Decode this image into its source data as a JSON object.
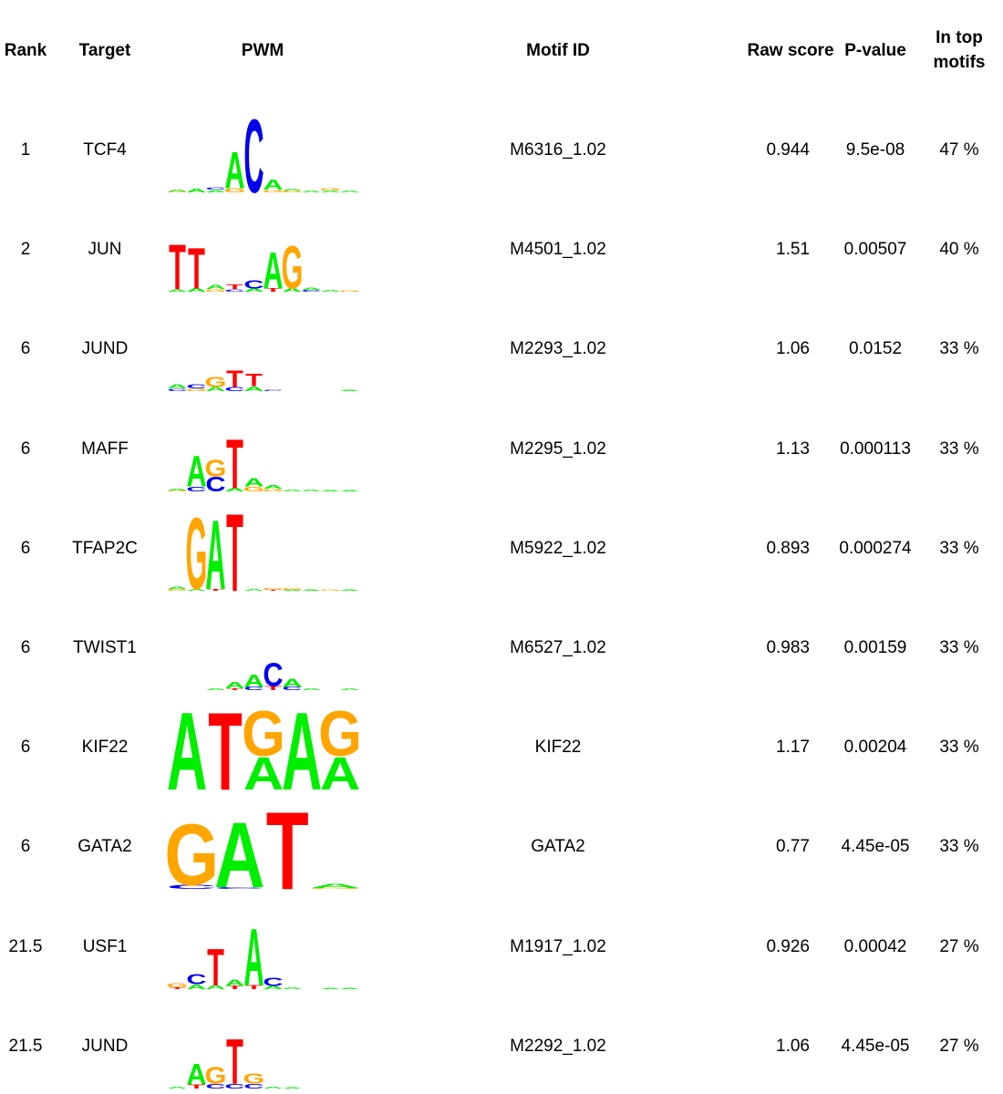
{
  "headers": {
    "rank": "Rank",
    "target": "Target",
    "pwm": "PWM",
    "motif_id": "Motif ID",
    "raw_score": "Raw score",
    "p_value": "P-value",
    "in_top_line1": "In top",
    "in_top_line2": "motifs"
  },
  "colors": {
    "A": "#00EE00",
    "C": "#0000EE",
    "G": "#FFA500",
    "T": "#FF0000"
  },
  "chart_data": {
    "type": "table",
    "rows": [
      {
        "rank": "1",
        "target": "TCF4",
        "motif_id": "M6316_1.02",
        "raw_score": "0.944",
        "p_value": "9.5e-08",
        "in_top": "47 %",
        "logo": [
          [
            "A",
            0.02,
            "G",
            0.01
          ],
          [
            "A",
            0.04
          ],
          [
            "C",
            0.03,
            "A",
            0.03
          ],
          [
            "A",
            0.45,
            "G",
            0.05
          ],
          [
            "C",
            0.9
          ],
          [
            "A",
            0.12,
            "G",
            0.03
          ],
          [
            "A",
            0.02,
            "G",
            0.02
          ],
          [
            "A",
            0.02
          ],
          [
            "G",
            0.03,
            "A",
            0.02
          ],
          [
            "A",
            0.02
          ]
        ]
      },
      {
        "rank": "2",
        "target": "JUN",
        "motif_id": "M4501_1.02",
        "raw_score": "1.51",
        "p_value": "0.00507",
        "in_top": "40 %",
        "logo": [
          [
            "T",
            0.55,
            "A",
            0.03
          ],
          [
            "T",
            0.5,
            "A",
            0.04
          ],
          [
            "A",
            0.05,
            "G",
            0.03
          ],
          [
            "T",
            0.06,
            "C",
            0.03
          ],
          [
            "C",
            0.1,
            "A",
            0.04
          ],
          [
            "A",
            0.45,
            "T",
            0.04
          ],
          [
            "G",
            0.52,
            "A",
            0.04
          ],
          [
            "A",
            0.03,
            "C",
            0.02
          ],
          [
            "A",
            0.02
          ],
          [
            "G",
            0.01
          ]
        ]
      },
      {
        "rank": "6",
        "target": "JUND",
        "motif_id": "M2293_1.02",
        "raw_score": "1.06",
        "p_value": "0.0152",
        "in_top": "33 %",
        "logo": [
          [
            "A",
            0.05,
            "C",
            0.03
          ],
          [
            "C",
            0.05,
            "G",
            0.03
          ],
          [
            "G",
            0.12,
            "A",
            0.05
          ],
          [
            "T",
            0.2,
            "C",
            0.05
          ],
          [
            "T",
            0.15,
            "A",
            0.06
          ],
          [
            "C",
            0.01
          ],
          [],
          [],
          [],
          [
            "A",
            0.01
          ]
        ]
      },
      {
        "rank": "6",
        "target": "MAFF",
        "motif_id": "M2295_1.02",
        "raw_score": "1.13",
        "p_value": "0.000113",
        "in_top": "33 %",
        "logo": [
          [
            "A",
            0.02,
            "G",
            0.01
          ],
          [
            "A",
            0.38,
            "C",
            0.06
          ],
          [
            "G",
            0.2,
            "C",
            0.18
          ],
          [
            "T",
            0.6,
            "A",
            0.04
          ],
          [
            "A",
            0.1,
            "G",
            0.06
          ],
          [
            "A",
            0.04,
            "G",
            0.03
          ],
          [
            "A",
            0.02
          ],
          [
            "A",
            0.02
          ],
          [
            "A",
            0.01
          ],
          [
            "A",
            0.01
          ]
        ]
      },
      {
        "rank": "6",
        "target": "TFAP2C",
        "motif_id": "M5922_1.02",
        "raw_score": "0.893",
        "p_value": "0.000274",
        "in_top": "33 %",
        "logo": [
          [
            "A",
            0.03,
            "G",
            0.02
          ],
          [
            "G",
            0.88,
            "A",
            0.02
          ],
          [
            "A",
            0.85,
            "T",
            0.02
          ],
          [
            "T",
            0.95
          ],
          [
            "A",
            0.02
          ],
          [
            "G",
            0.02,
            "T",
            0.01
          ],
          [
            "G",
            0.02,
            "A",
            0.01
          ],
          [
            "A",
            0.01
          ],
          [
            "G",
            0.01
          ],
          [
            "A",
            0.01
          ]
        ]
      },
      {
        "rank": "6",
        "target": "TWIST1",
        "motif_id": "M6527_1.02",
        "raw_score": "0.983",
        "p_value": "0.00159",
        "in_top": "33 %",
        "logo": [
          [],
          [],
          [
            "A",
            0.02
          ],
          [
            "A",
            0.08,
            "T",
            0.02
          ],
          [
            "A",
            0.15,
            "C",
            0.04
          ],
          [
            "C",
            0.28,
            "T",
            0.05
          ],
          [
            "A",
            0.1,
            "C",
            0.04
          ],
          [
            "A",
            0.02
          ],
          [],
          [
            "A",
            0.02
          ]
        ]
      },
      {
        "rank": "6",
        "target": "KIF22",
        "motif_id": "KIF22",
        "raw_score": "1.17",
        "p_value": "0.00204",
        "in_top": "33 %",
        "logo": [
          [
            "A",
            0.95
          ],
          [
            "T",
            0.95
          ],
          [
            "G",
            0.55,
            "A",
            0.4
          ],
          [
            "A",
            0.95
          ],
          [
            "G",
            0.55,
            "A",
            0.4
          ]
        ]
      },
      {
        "rank": "6",
        "target": "GATA2",
        "motif_id": "GATA2",
        "raw_score": "0.77",
        "p_value": "4.45e-05",
        "in_top": "33 %",
        "logo": [
          [
            "G",
            0.75,
            "C",
            0.05
          ],
          [
            "A",
            0.8,
            "C",
            0.02
          ],
          [
            "T",
            0.95
          ],
          [
            "A",
            0.05,
            "G",
            0.01
          ]
        ]
      },
      {
        "rank": "21.5",
        "target": "USF1",
        "motif_id": "M1917_1.02",
        "raw_score": "0.926",
        "p_value": "0.00042",
        "in_top": "27 %",
        "logo": [
          [
            "G",
            0.05,
            "T",
            0.02
          ],
          [
            "C",
            0.12,
            "A",
            0.06
          ],
          [
            "T",
            0.45,
            "A",
            0.05
          ],
          [
            "A",
            0.08,
            "T",
            0.04
          ],
          [
            "A",
            0.7,
            "T",
            0.05
          ],
          [
            "C",
            0.1,
            "A",
            0.04
          ],
          [
            "A",
            0.02
          ],
          [],
          [
            "A",
            0.01
          ],
          [
            "A",
            0.01
          ]
        ]
      },
      {
        "rank": "21.5",
        "target": "JUND",
        "motif_id": "M2292_1.02",
        "raw_score": "1.06",
        "p_value": "4.45e-05",
        "in_top": "27 %",
        "logo": [
          [
            "A",
            0.02
          ],
          [
            "A",
            0.25,
            "T",
            0.05
          ],
          [
            "G",
            0.2,
            "C",
            0.06
          ],
          [
            "T",
            0.55,
            "C",
            0.06
          ],
          [
            "G",
            0.12,
            "C",
            0.06
          ],
          [
            "A",
            0.02
          ],
          [
            "A",
            0.01
          ]
        ]
      }
    ]
  }
}
